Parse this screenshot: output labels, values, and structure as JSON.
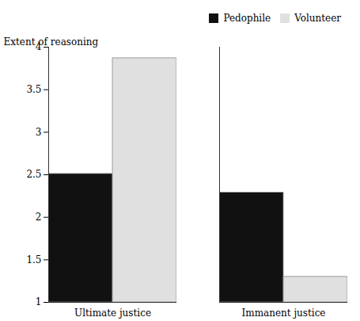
{
  "chart_data": {
    "type": "bar",
    "categories": [
      "Ultimate justice",
      "Immanent justice"
    ],
    "series": [
      {
        "name": "Pedophile",
        "color": "#111111",
        "values": [
          2.51,
          2.29
        ]
      },
      {
        "name": "Volunteer",
        "color": "#e0e0e0",
        "values": [
          3.87,
          1.3
        ]
      }
    ],
    "ylabel": "Extent of reasoning",
    "ylim": [
      1,
      4
    ],
    "yticks": [
      1,
      1.5,
      2,
      2.5,
      3,
      3.5,
      4
    ],
    "legend": "upper right"
  }
}
